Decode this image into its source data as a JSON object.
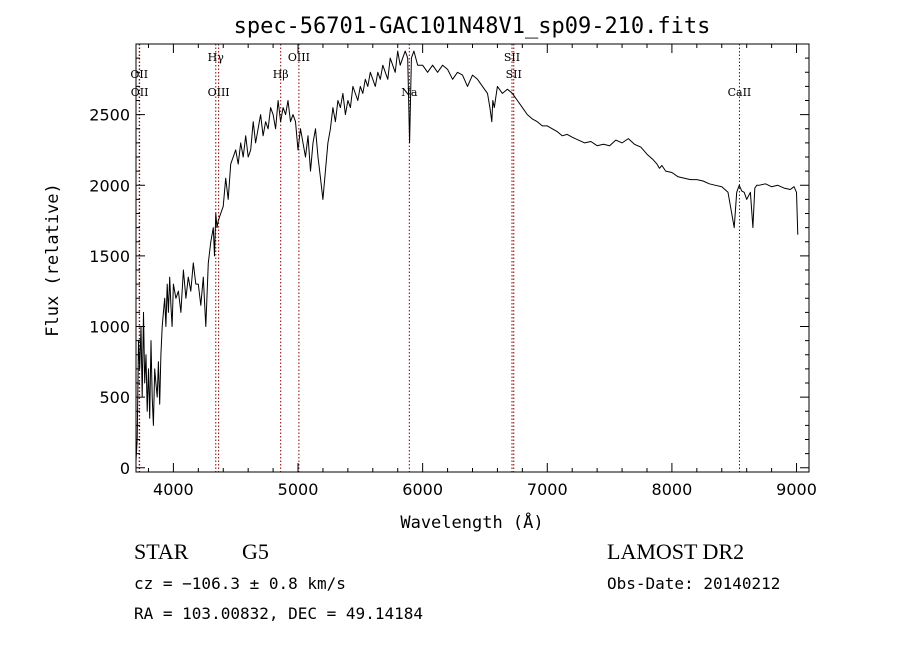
{
  "chart_data": {
    "type": "line",
    "title": "spec-56701-GAC101N48V1_sp09-210.fits",
    "xlabel": "Wavelength (Å)",
    "ylabel": "Flux (relative)",
    "xlim": [
      3700,
      9100
    ],
    "ylim": [
      -30,
      3000
    ],
    "xticks": [
      {
        "value": 4000,
        "label": "4000"
      },
      {
        "value": 5000,
        "label": "5000"
      },
      {
        "value": 6000,
        "label": "6000"
      },
      {
        "value": 7000,
        "label": "7000"
      },
      {
        "value": 8000,
        "label": "8000"
      },
      {
        "value": 9000,
        "label": "9000"
      }
    ],
    "yticks": [
      {
        "value": 0,
        "label": "0"
      },
      {
        "value": 500,
        "label": "500"
      },
      {
        "value": 1000,
        "label": "1000"
      },
      {
        "value": 1500,
        "label": "1500"
      },
      {
        "value": 2000,
        "label": "2000"
      },
      {
        "value": 2500,
        "label": "2500"
      }
    ],
    "line_color": "#000000",
    "marker_color": "#8b0000",
    "spectral_lines": [
      {
        "label": "OII",
        "wavelength": 3726,
        "row": "upper"
      },
      {
        "label": "OII",
        "wavelength": 3729,
        "row": "lower"
      },
      {
        "label": "Hγ",
        "wavelength": 4340,
        "row": "top"
      },
      {
        "label": "OIII",
        "wavelength": 4363,
        "row": "lower"
      },
      {
        "label": "Hβ",
        "wavelength": 4861,
        "row": "upper"
      },
      {
        "label": "OIII",
        "wavelength": 5007,
        "row": "top"
      },
      {
        "label": "Na",
        "wavelength": 5893,
        "row": "lower"
      },
      {
        "label": "SII",
        "wavelength": 6717,
        "row": "top"
      },
      {
        "label": "SII",
        "wavelength": 6731,
        "row": "upper"
      },
      {
        "label": "CaII",
        "wavelength": 8542,
        "row": "lower"
      }
    ],
    "series": [
      {
        "x": [
          3700,
          3710,
          3720,
          3730,
          3740,
          3750,
          3760,
          3770,
          3780,
          3790,
          3800,
          3810,
          3820,
          3830,
          3840,
          3850,
          3860,
          3870,
          3880,
          3890,
          3900,
          3910,
          3920,
          3930,
          3940,
          3950,
          3960,
          3970,
          3980,
          3990,
          4000,
          4020,
          4040,
          4060,
          4080,
          4100,
          4120,
          4140,
          4160,
          4180,
          4200,
          4220,
          4240,
          4260,
          4280,
          4300,
          4320,
          4330,
          4340,
          4350,
          4360,
          4380,
          4400,
          4420,
          4440,
          4460,
          4480,
          4500,
          4520,
          4540,
          4560,
          4580,
          4600,
          4620,
          4640,
          4660,
          4680,
          4700,
          4720,
          4740,
          4760,
          4780,
          4800,
          4820,
          4840,
          4860,
          4880,
          4900,
          4920,
          4940,
          4960,
          4980,
          5000,
          5020,
          5040,
          5060,
          5080,
          5100,
          5120,
          5140,
          5160,
          5180,
          5200,
          5220,
          5240,
          5260,
          5280,
          5300,
          5320,
          5340,
          5360,
          5380,
          5400,
          5420,
          5440,
          5460,
          5480,
          5500,
          5520,
          5540,
          5560,
          5580,
          5600,
          5620,
          5640,
          5660,
          5680,
          5700,
          5720,
          5740,
          5760,
          5780,
          5800,
          5820,
          5840,
          5860,
          5880,
          5895,
          5910,
          5930,
          5960,
          6000,
          6040,
          6080,
          6120,
          6160,
          6200,
          6240,
          6280,
          6320,
          6360,
          6400,
          6440,
          6480,
          6520,
          6540,
          6555,
          6563,
          6575,
          6600,
          6640,
          6680,
          6720,
          6760,
          6800,
          6840,
          6880,
          6920,
          6960,
          7000,
          7040,
          7080,
          7120,
          7160,
          7200,
          7250,
          7300,
          7350,
          7400,
          7450,
          7500,
          7550,
          7600,
          7650,
          7700,
          7750,
          7800,
          7850,
          7880,
          7900,
          7920,
          7950,
          8000,
          8050,
          8100,
          8150,
          8200,
          8250,
          8300,
          8350,
          8400,
          8450,
          8500,
          8520,
          8540,
          8550,
          8560,
          8580,
          8600,
          8630,
          8650,
          8665,
          8680,
          8700,
          8750,
          8800,
          8850,
          8900,
          8950,
          8980,
          9000,
          9010
        ],
        "y": [
          50,
          200,
          900,
          700,
          1000,
          500,
          1100,
          600,
          800,
          400,
          700,
          350,
          900,
          500,
          300,
          700,
          600,
          500,
          750,
          450,
          800,
          1000,
          1100,
          1200,
          1000,
          1300,
          1100,
          1350,
          1150,
          1000,
          1300,
          1200,
          1250,
          1100,
          1400,
          1200,
          1350,
          1250,
          1450,
          1300,
          1300,
          1150,
          1350,
          1000,
          1450,
          1600,
          1700,
          1500,
          1800,
          1700,
          1750,
          1800,
          1850,
          2050,
          1900,
          2150,
          2200,
          2250,
          2150,
          2300,
          2200,
          2350,
          2200,
          2250,
          2450,
          2300,
          2400,
          2500,
          2350,
          2450,
          2400,
          2550,
          2500,
          2400,
          2600,
          2450,
          2550,
          2500,
          2600,
          2450,
          2500,
          2450,
          2250,
          2400,
          2300,
          2200,
          2350,
          2100,
          2300,
          2400,
          2200,
          2050,
          1900,
          2100,
          2300,
          2400,
          2550,
          2450,
          2600,
          2550,
          2650,
          2500,
          2600,
          2550,
          2700,
          2650,
          2600,
          2700,
          2650,
          2750,
          2700,
          2800,
          2750,
          2700,
          2800,
          2750,
          2850,
          2800,
          2750,
          2900,
          2850,
          2800,
          2950,
          2850,
          2900,
          2950,
          2900,
          2300,
          2900,
          2950,
          2850,
          2850,
          2800,
          2850,
          2800,
          2850,
          2820,
          2750,
          2800,
          2780,
          2700,
          2780,
          2750,
          2700,
          2650,
          2550,
          2450,
          2600,
          2550,
          2700,
          2650,
          2680,
          2650,
          2600,
          2550,
          2500,
          2470,
          2450,
          2420,
          2420,
          2400,
          2380,
          2350,
          2360,
          2340,
          2320,
          2300,
          2310,
          2280,
          2290,
          2280,
          2320,
          2300,
          2330,
          2290,
          2270,
          2220,
          2180,
          2150,
          2120,
          2140,
          2100,
          2090,
          2060,
          2050,
          2040,
          2040,
          2030,
          2010,
          2000,
          1990,
          1950,
          1700,
          1950,
          2000,
          1980,
          1960,
          1950,
          1900,
          1950,
          1700,
          1980,
          2000,
          2000,
          2010,
          1990,
          2000,
          1980,
          1970,
          1990,
          1950,
          1650
        ]
      }
    ]
  },
  "info": {
    "class": "STAR",
    "subclass": "G5",
    "survey": "LAMOST DR2",
    "cz": "cz = −106.3 ± 0.8 km/s",
    "obs_date": "Obs-Date: 20140212",
    "radec": "RA = 103.00832, DEC =  49.14184"
  }
}
